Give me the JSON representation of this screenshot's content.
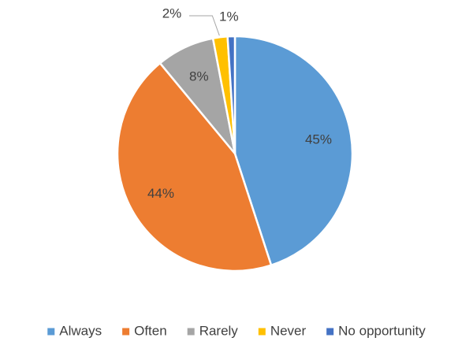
{
  "chart_data": {
    "type": "pie",
    "legend_position": "bottom",
    "slices": [
      {
        "name": "Always",
        "value": 45,
        "label": "45%",
        "color": "#5B9BD5"
      },
      {
        "name": "Often",
        "value": 44,
        "label": "44%",
        "color": "#ED7D31"
      },
      {
        "name": "Rarely",
        "value": 8,
        "label": "8%",
        "color": "#A5A5A5"
      },
      {
        "name": "Never",
        "value": 2,
        "label": "2%",
        "color": "#FFC000"
      },
      {
        "name": "No opportunity",
        "value": 1,
        "label": "1%",
        "color": "#4472C4"
      }
    ]
  }
}
